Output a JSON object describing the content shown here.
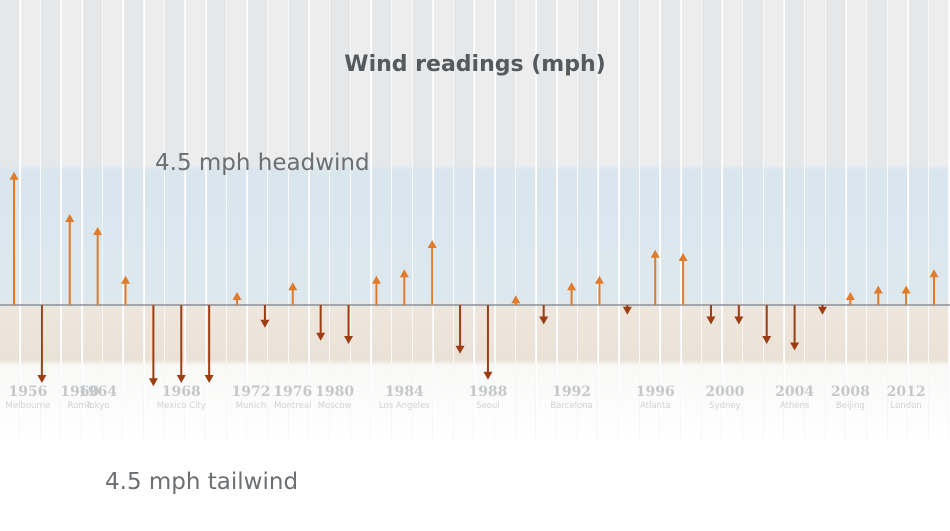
{
  "chart_data": {
    "type": "bar",
    "title": "Wind readings (mph)",
    "ylim": [
      -4.5,
      4.5
    ],
    "reference_labels": {
      "headwind": "4.5 mph headwind",
      "tailwind": "4.5 mph tailwind"
    },
    "colors": {
      "headwind": "#e07b2c",
      "tailwind": "#9c3d12",
      "axis": "#7a8088"
    },
    "games": [
      {
        "year": "1956",
        "city": "Melbourne"
      },
      {
        "year": "1960",
        "city": "Rome"
      },
      {
        "year": "1964",
        "city": "Tokyo"
      },
      {
        "year": "1968",
        "city": "Mexico City"
      },
      {
        "year": "1972",
        "city": "Munich"
      },
      {
        "year": "1976",
        "city": "Montreal"
      },
      {
        "year": "1980",
        "city": "Moscow"
      },
      {
        "year": "1984",
        "city": "Los Angeles"
      },
      {
        "year": "1988",
        "city": "Seoul"
      },
      {
        "year": "1992",
        "city": "Barcelona"
      },
      {
        "year": "1996",
        "city": "Atlanta"
      },
      {
        "year": "2000",
        "city": "Sydney"
      },
      {
        "year": "2004",
        "city": "Athens"
      },
      {
        "year": "2008",
        "city": "Beijing"
      },
      {
        "year": "2012",
        "city": "London"
      }
    ],
    "readings": [
      {
        "game": "1956",
        "value": 4.1
      },
      {
        "game": "1956",
        "value": -2.4
      },
      {
        "game": "1964",
        "value": 2.8
      },
      {
        "game": "1964",
        "value": 2.4
      },
      {
        "game": "1964",
        "value": 0.9
      },
      {
        "game": "1968",
        "value": -2.5
      },
      {
        "game": "1968",
        "value": -2.4
      },
      {
        "game": "1968",
        "value": -2.4
      },
      {
        "game": "1972",
        "value": 0.4
      },
      {
        "game": "1972",
        "value": -0.7
      },
      {
        "game": "1976",
        "value": 0.7
      },
      {
        "game": "1980",
        "value": -1.1
      },
      {
        "game": "1980",
        "value": -1.2
      },
      {
        "game": "1984",
        "value": 0.9
      },
      {
        "game": "1984",
        "value": 1.1
      },
      {
        "game": "1984",
        "value": 2.0
      },
      {
        "game": "1988",
        "value": -1.5
      },
      {
        "game": "1988",
        "value": -2.3
      },
      {
        "game": "1988",
        "value": 0.3
      },
      {
        "game": "1992",
        "value": -0.6
      },
      {
        "game": "1992",
        "value": 0.7
      },
      {
        "game": "1992",
        "value": 0.9
      },
      {
        "game": "1996",
        "value": -0.3
      },
      {
        "game": "1996",
        "value": 1.7
      },
      {
        "game": "1996",
        "value": 1.6
      },
      {
        "game": "2000",
        "value": -0.6
      },
      {
        "game": "2000",
        "value": -0.6
      },
      {
        "game": "2004",
        "value": -1.2
      },
      {
        "game": "2004",
        "value": -1.4
      },
      {
        "game": "2004",
        "value": -0.3
      },
      {
        "game": "2008",
        "value": 0.4
      },
      {
        "game": "2012",
        "value": 0.6
      },
      {
        "game": "2012",
        "value": 0.6
      },
      {
        "game": "2012",
        "value": 1.1
      }
    ]
  }
}
